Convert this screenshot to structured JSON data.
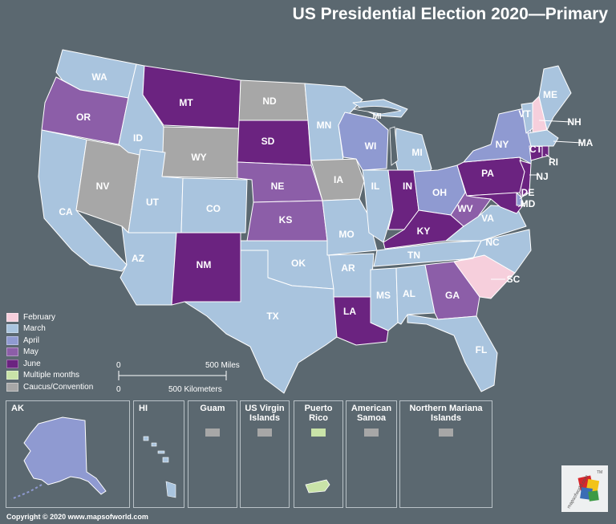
{
  "title": "US Presidential Election 2020—Primary",
  "colors": {
    "background": "#5b6870",
    "february": "#f6cfdc",
    "march": "#a9c4de",
    "april": "#8f9ad1",
    "may": "#8c5ea8",
    "june": "#6b2380",
    "multiple_months": "#c9e3a8",
    "caucus": "#a7a7a7",
    "lines": "#ffffff"
  },
  "legend": [
    {
      "label": "February",
      "color": "#f6cfdc"
    },
    {
      "label": "March",
      "color": "#a9c4de"
    },
    {
      "label": "April",
      "color": "#8f9ad1"
    },
    {
      "label": "May",
      "color": "#8c5ea8"
    },
    {
      "label": "June",
      "color": "#6b2380"
    },
    {
      "label": "Multiple months",
      "color": "#c9e3a8"
    },
    {
      "label": "Caucus/Convention",
      "color": "#a7a7a7"
    }
  ],
  "scale": {
    "zero_top": "0",
    "miles": "500 Miles",
    "zero_bottom": "0",
    "km": "500 Kilometers"
  },
  "states": [
    {
      "abbr": "WA",
      "primary": "March"
    },
    {
      "abbr": "OR",
      "primary": "May"
    },
    {
      "abbr": "CA",
      "primary": "March"
    },
    {
      "abbr": "ID",
      "primary": "March"
    },
    {
      "abbr": "NV",
      "primary": "Caucus/Convention"
    },
    {
      "abbr": "MT",
      "primary": "June"
    },
    {
      "abbr": "WY",
      "primary": "Caucus/Convention"
    },
    {
      "abbr": "UT",
      "primary": "March"
    },
    {
      "abbr": "AZ",
      "primary": "March"
    },
    {
      "abbr": "CO",
      "primary": "March"
    },
    {
      "abbr": "NM",
      "primary": "June"
    },
    {
      "abbr": "ND",
      "primary": "Caucus/Convention"
    },
    {
      "abbr": "SD",
      "primary": "June"
    },
    {
      "abbr": "NE",
      "primary": "May"
    },
    {
      "abbr": "KS",
      "primary": "May"
    },
    {
      "abbr": "OK",
      "primary": "March"
    },
    {
      "abbr": "TX",
      "primary": "March"
    },
    {
      "abbr": "MN",
      "primary": "March"
    },
    {
      "abbr": "IA",
      "primary": "Caucus/Convention"
    },
    {
      "abbr": "MO",
      "primary": "March"
    },
    {
      "abbr": "AR",
      "primary": "March"
    },
    {
      "abbr": "LA",
      "primary": "June"
    },
    {
      "abbr": "WI",
      "primary": "April"
    },
    {
      "abbr": "IL",
      "primary": "March"
    },
    {
      "abbr": "MS",
      "primary": "March"
    },
    {
      "abbr": "MI",
      "primary": "March"
    },
    {
      "abbr": "IN",
      "primary": "June"
    },
    {
      "abbr": "OH",
      "primary": "April"
    },
    {
      "abbr": "KY",
      "primary": "June"
    },
    {
      "abbr": "TN",
      "primary": "March"
    },
    {
      "abbr": "AL",
      "primary": "March"
    },
    {
      "abbr": "GA",
      "primary": "May"
    },
    {
      "abbr": "FL",
      "primary": "March"
    },
    {
      "abbr": "SC",
      "primary": "February"
    },
    {
      "abbr": "NC",
      "primary": "March"
    },
    {
      "abbr": "VA",
      "primary": "March"
    },
    {
      "abbr": "WV",
      "primary": "May"
    },
    {
      "abbr": "PA",
      "primary": "June"
    },
    {
      "abbr": "NY",
      "primary": "April"
    },
    {
      "abbr": "VT",
      "primary": "March"
    },
    {
      "abbr": "NH",
      "primary": "February"
    },
    {
      "abbr": "ME",
      "primary": "March"
    },
    {
      "abbr": "MA",
      "primary": "March"
    },
    {
      "abbr": "CT",
      "primary": "June"
    },
    {
      "abbr": "RI",
      "primary": "June"
    },
    {
      "abbr": "NJ",
      "primary": "June"
    },
    {
      "abbr": "DE",
      "primary": "April"
    },
    {
      "abbr": "MD",
      "primary": "June"
    },
    {
      "abbr": "AK",
      "primary": "April"
    },
    {
      "abbr": "HI",
      "primary": "March"
    }
  ],
  "lake_label": "MI",
  "insets": [
    {
      "label": "AK",
      "primary": "April"
    },
    {
      "label": "HI",
      "primary": "March"
    },
    {
      "label": "Guam",
      "primary": "Caucus/Convention"
    },
    {
      "label": "US Virgin Islands",
      "primary": "Caucus/Convention"
    },
    {
      "label": "Puerto Rico",
      "primary": "Multiple months"
    },
    {
      "label": "American Samoa",
      "primary": "Caucus/Convention"
    },
    {
      "label": "Northern Mariana Islands",
      "primary": "Caucus/Convention"
    }
  ],
  "copyright": "Copyright © 2020 www.mapsofworld.com",
  "logo_text": "mapsofworld.com",
  "logo_tm": "TM"
}
